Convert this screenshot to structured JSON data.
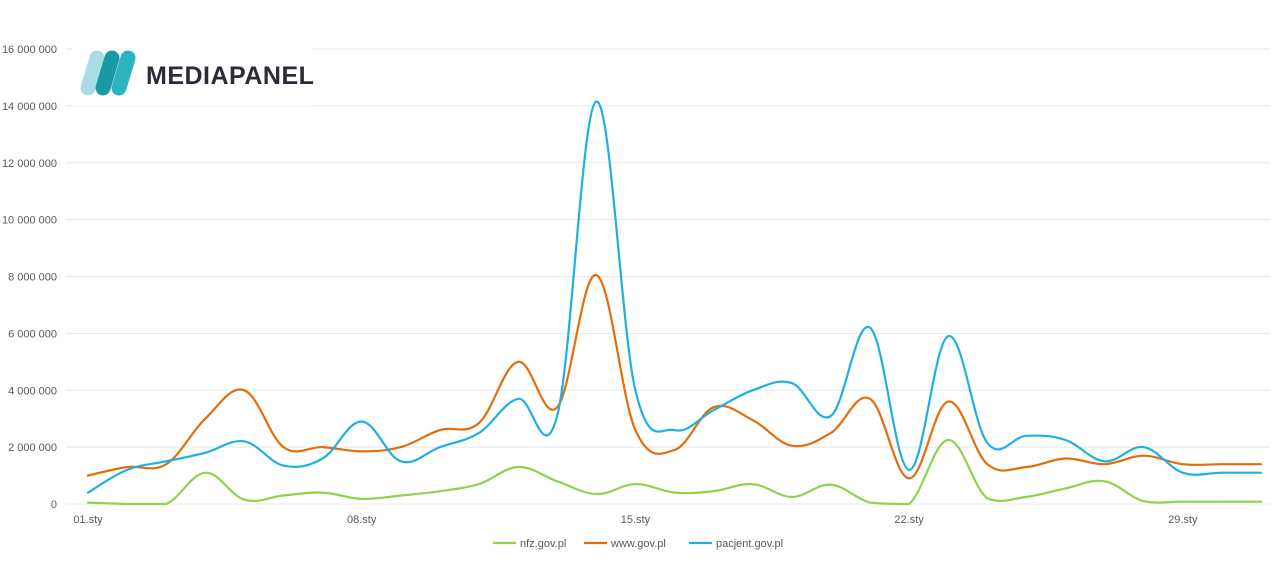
{
  "logo": {
    "text": "MEDIAPANEL",
    "mark_colors": [
      "#a8dde3",
      "#2bb3bf",
      "#1a9aa6"
    ]
  },
  "colors": {
    "nfz": "#92d050",
    "www": "#e46c0a",
    "pacjent": "#1fb0e0",
    "grid": "#e8e8e8",
    "axis_text": "#595959"
  },
  "chart_data": {
    "type": "line",
    "title": "",
    "xlabel": "",
    "ylabel": "",
    "ylim": [
      0,
      16000000
    ],
    "yticks": [
      0,
      2000000,
      4000000,
      6000000,
      8000000,
      10000000,
      12000000,
      14000000,
      16000000
    ],
    "ytick_labels": [
      "0",
      "2 000 000",
      "4 000 000",
      "6 000 000",
      "8 000 000",
      "10 000 000",
      "12 000 000",
      "14 000 000",
      "16 000 000"
    ],
    "x": [
      1,
      2,
      3,
      4,
      5,
      6,
      7,
      8,
      9,
      10,
      11,
      12,
      13,
      14,
      15,
      16,
      17,
      18,
      19,
      20,
      21,
      22,
      23,
      24,
      25,
      26,
      27,
      28,
      29,
      30,
      31
    ],
    "xticks": [
      1,
      8,
      15,
      22,
      29
    ],
    "xtick_labels": [
      "01.sty",
      "08.sty",
      "15.sty",
      "22.sty",
      "29.sty"
    ],
    "grid": true,
    "legend_position": "bottom",
    "series": [
      {
        "name": "nfz.gov.pl",
        "color": "#92d050",
        "values": [
          50000,
          0,
          0,
          1100000,
          150000,
          300000,
          400000,
          180000,
          300000,
          450000,
          700000,
          1300000,
          800000,
          350000,
          700000,
          400000,
          450000,
          700000,
          250000,
          680000,
          50000,
          0,
          2250000,
          200000,
          250000,
          550000,
          800000,
          100000,
          80000,
          80000,
          80000
        ]
      },
      {
        "name": "www.gov.pl",
        "color": "#e46c0a",
        "values": [
          1000000,
          1300000,
          1400000,
          3000000,
          4000000,
          2000000,
          2000000,
          1850000,
          2000000,
          2600000,
          2850000,
          5000000,
          3400000,
          8050000,
          2600000,
          1900000,
          3400000,
          2950000,
          2050000,
          2500000,
          3700000,
          900000,
          3600000,
          1400000,
          1300000,
          1600000,
          1400000,
          1700000,
          1400000,
          1400000,
          1400000
        ]
      },
      {
        "name": "pacjent.gov.pl",
        "color": "#1fb0e0",
        "values": [
          400000,
          1200000,
          1500000,
          1800000,
          2200000,
          1350000,
          1600000,
          2900000,
          1500000,
          2000000,
          2500000,
          3700000,
          3100000,
          14150000,
          4000000,
          2600000,
          3300000,
          4000000,
          4250000,
          3100000,
          6200000,
          1200000,
          5900000,
          2150000,
          2400000,
          2250000,
          1500000,
          2000000,
          1100000,
          1100000,
          1100000
        ]
      }
    ]
  },
  "legend": {
    "items": [
      {
        "label": "nfz.gov.pl",
        "color": "#92d050"
      },
      {
        "label": "www.gov.pl",
        "color": "#e46c0a"
      },
      {
        "label": "pacjent.gov.pl",
        "color": "#1fb0e0"
      }
    ]
  }
}
